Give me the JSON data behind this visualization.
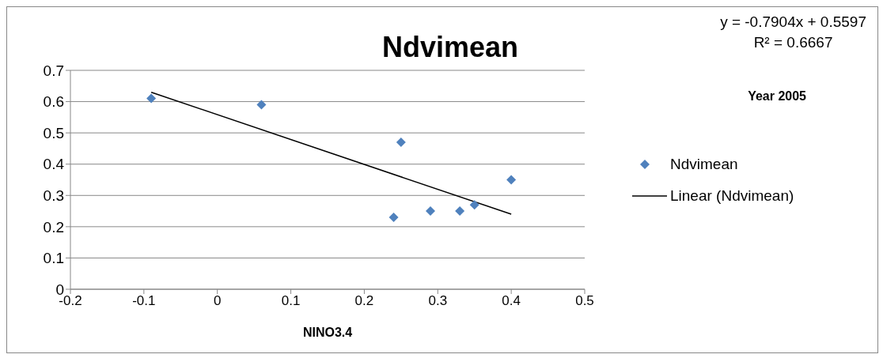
{
  "chart_data": {
    "type": "scatter",
    "title": "Ndvimean",
    "xlabel": "NINO3.4",
    "xlim": [
      -0.2,
      0.5
    ],
    "xticks": [
      -0.2,
      -0.1,
      0,
      0.1,
      0.2,
      0.3,
      0.4,
      0.5
    ],
    "ylim": [
      0,
      0.7
    ],
    "yticks": [
      0,
      0.1,
      0.2,
      0.3,
      0.4,
      0.5,
      0.6,
      0.7
    ],
    "grid": "y",
    "legend": "right",
    "series": [
      {
        "name": "Ndvimean",
        "marker": "diamond",
        "color": "#4f81bd",
        "x": [
          -0.09,
          0.06,
          0.25,
          0.24,
          0.29,
          0.33,
          0.35,
          0.4
        ],
        "values": [
          0.61,
          0.59,
          0.47,
          0.23,
          0.25,
          0.25,
          0.27,
          0.35
        ]
      },
      {
        "name": "Linear (Ndvimean)",
        "type": "line",
        "marker": "none",
        "color": "#000000",
        "line_style": "solid",
        "x": [
          -0.09,
          0.4
        ],
        "values": [
          0.63,
          0.24
        ]
      }
    ],
    "annotations": [
      "y = -0.7904x + 0.5597",
      "R² = 0.6667",
      "Year 2005"
    ]
  }
}
